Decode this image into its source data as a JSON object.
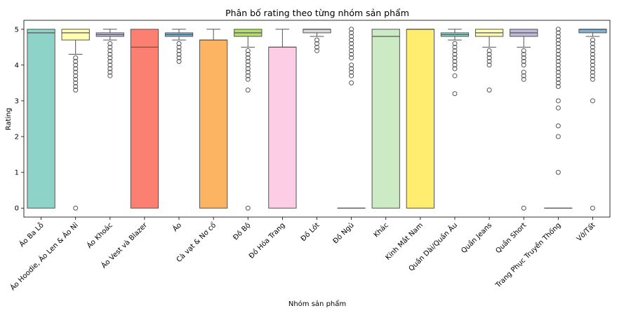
{
  "chart_data": {
    "type": "box",
    "title": "Phân bố rating theo từng nhóm sản phẩm",
    "xlabel": "Nhóm sản phẩm",
    "ylabel": "Rating",
    "ylim": [
      -0.25,
      5.25
    ],
    "yticks": [
      0,
      1,
      2,
      3,
      4,
      5
    ],
    "grid": false,
    "boxes": [
      {
        "category": "Áo Ba Lỗ",
        "color": "#8dd3c7",
        "whisker_low": 0,
        "q1": 0,
        "median": 4.9,
        "q3": 5,
        "whisker_high": 5,
        "fliers": []
      },
      {
        "category": "Áo Hoodie, Áo Len & Áo Nỉ",
        "color": "#ffffb3",
        "whisker_low": 4.3,
        "q1": 4.7,
        "median": 4.9,
        "q3": 5,
        "whisker_high": 5,
        "fliers": [
          4.2,
          4.1,
          4.0,
          3.9,
          3.8,
          3.7,
          3.6,
          3.5,
          3.4,
          3.3,
          0
        ]
      },
      {
        "category": "Áo Khoác",
        "color": "#bebada",
        "whisker_low": 4.7,
        "q1": 4.8,
        "median": 4.85,
        "q3": 4.9,
        "whisker_high": 5,
        "fliers": [
          4.6,
          4.5,
          4.4,
          4.3,
          4.2,
          4.1,
          4.0,
          3.9,
          3.8,
          3.7
        ]
      },
      {
        "category": "Áo Vest và Blazer",
        "color": "#fb8072",
        "whisker_low": 0,
        "q1": 0,
        "median": 4.5,
        "q3": 5,
        "whisker_high": 5,
        "fliers": []
      },
      {
        "category": "Áo",
        "color": "#80b1d3",
        "whisker_low": 4.7,
        "q1": 4.8,
        "median": 4.85,
        "q3": 4.9,
        "whisker_high": 5,
        "fliers": [
          4.6,
          4.5,
          4.4,
          4.3,
          4.2,
          4.1
        ]
      },
      {
        "category": "Cà vạt & Nơ cổ",
        "color": "#fdb462",
        "whisker_low": 0,
        "q1": 0,
        "median": 4.7,
        "q3": 4.7,
        "whisker_high": 5,
        "fliers": []
      },
      {
        "category": "Đồ Bộ",
        "color": "#b3de69",
        "whisker_low": 4.5,
        "q1": 4.8,
        "median": 4.9,
        "q3": 5,
        "whisker_high": 5,
        "fliers": [
          4.4,
          4.3,
          4.2,
          4.1,
          4.0,
          3.9,
          3.8,
          3.7,
          3.6,
          3.3,
          0
        ]
      },
      {
        "category": "Đồ Hóa Trang",
        "color": "#fccde5",
        "whisker_low": 0,
        "q1": 0,
        "median": 4.5,
        "q3": 4.5,
        "whisker_high": 5,
        "fliers": []
      },
      {
        "category": "Đồ Lót",
        "color": "#d9d9d9",
        "whisker_low": 4.8,
        "q1": 4.9,
        "median": 5,
        "q3": 5,
        "whisker_high": 5,
        "fliers": [
          4.7,
          4.6,
          4.5,
          4.4
        ]
      },
      {
        "category": "Đồ Ngủ",
        "color": "#bc80bd",
        "whisker_low": 0,
        "q1": 0,
        "median": 0,
        "q3": 0,
        "whisker_high": 0,
        "fliers": [
          5.0,
          4.9,
          4.8,
          4.7,
          4.6,
          4.5,
          4.4,
          4.3,
          4.2,
          4.0,
          3.9,
          3.8,
          3.7,
          3.5
        ]
      },
      {
        "category": "Khác",
        "color": "#ccebc5",
        "whisker_low": 0,
        "q1": 0,
        "median": 4.8,
        "q3": 5,
        "whisker_high": 5,
        "fliers": []
      },
      {
        "category": "Kính Mắt Nam",
        "color": "#ffed6f",
        "whisker_low": 0,
        "q1": 0,
        "median": 5,
        "q3": 5,
        "whisker_high": 5,
        "fliers": []
      },
      {
        "category": "Quần Dài/Quần Âu",
        "color": "#8dd3c7",
        "whisker_low": 4.7,
        "q1": 4.8,
        "median": 4.85,
        "q3": 4.9,
        "whisker_high": 5,
        "fliers": [
          4.6,
          4.5,
          4.4,
          4.3,
          4.2,
          4.1,
          4.0,
          3.9,
          3.7,
          3.2
        ]
      },
      {
        "category": "Quần Jeans",
        "color": "#ffffb3",
        "whisker_low": 4.5,
        "q1": 4.8,
        "median": 4.9,
        "q3": 5,
        "whisker_high": 5,
        "fliers": [
          4.4,
          4.3,
          4.2,
          4.1,
          4.0,
          3.3
        ]
      },
      {
        "category": "Quần Short",
        "color": "#bebada",
        "whisker_low": 4.5,
        "q1": 4.8,
        "median": 4.9,
        "q3": 5,
        "whisker_high": 5,
        "fliers": [
          4.4,
          4.3,
          4.2,
          4.1,
          4.0,
          3.8,
          3.7,
          3.6,
          0
        ]
      },
      {
        "category": "Trang Phục Truyền Thống",
        "color": "#fb8072",
        "whisker_low": 0,
        "q1": 0,
        "median": 0,
        "q3": 0,
        "whisker_high": 0,
        "fliers": [
          5.0,
          4.9,
          4.8,
          4.7,
          4.6,
          4.5,
          4.4,
          4.3,
          4.2,
          4.1,
          4.0,
          3.9,
          3.8,
          3.7,
          3.6,
          3.5,
          3.4,
          3.0,
          2.8,
          2.3,
          2.0,
          1.0
        ]
      },
      {
        "category": "Vớ/Tất",
        "color": "#80b1d3",
        "whisker_low": 4.8,
        "q1": 4.9,
        "median": 5,
        "q3": 5,
        "whisker_high": 5,
        "fliers": [
          4.7,
          4.6,
          4.5,
          4.4,
          4.3,
          4.2,
          4.1,
          4.0,
          3.9,
          3.8,
          3.7,
          3.6,
          3.0,
          0
        ]
      }
    ]
  }
}
